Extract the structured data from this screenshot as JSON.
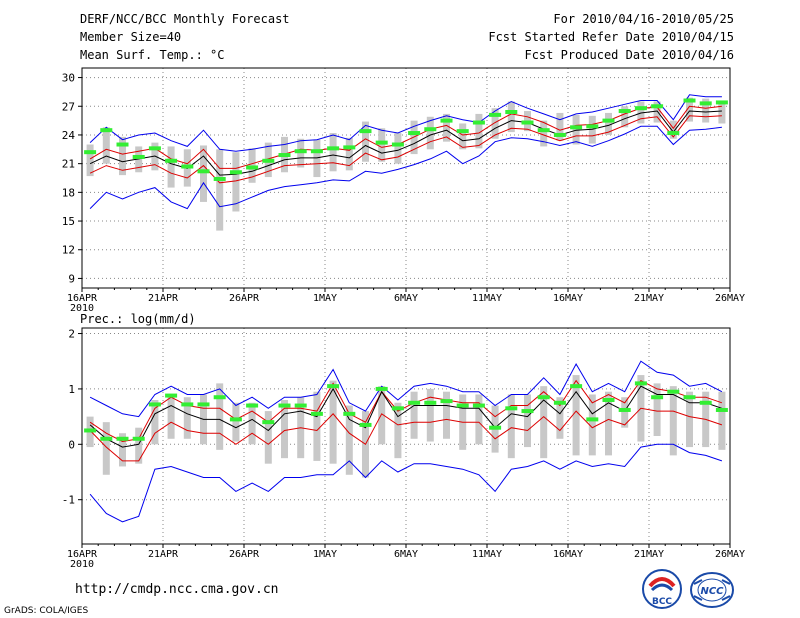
{
  "header": {
    "title": "DERF/NCC/BCC Monthly Forecast",
    "member_size": "Member Size=40",
    "variable": "Mean Surf. Temp.: °C",
    "forecast_period": "For 2010/04/16-2010/05/25",
    "start_refer_date": "Fcst Started Refer Date 2010/04/15",
    "produced_date": "Fcst Produced Date 2010/04/16"
  },
  "footer": {
    "url": "http://cmdp.ncc.cma.gov.cn",
    "credit": "GrADS: COLA/IGES",
    "logo_left_text": "BCC",
    "logo_right_text": "NCC"
  },
  "colors": {
    "envelope": "#0000ee",
    "spread": "#dd0000",
    "ensemble_mean": "#000000",
    "observed": "#33ee33",
    "box": "#c8c8c8",
    "grid": "#888888"
  },
  "chart_data": [
    {
      "type": "line",
      "title": "Mean Surf. Temp.: °C",
      "x_tick_labels": [
        "16APR",
        "21APR",
        "26APR",
        "1MAY",
        "6MAY",
        "11MAY",
        "16MAY",
        "21MAY",
        "26MAY"
      ],
      "x_year_label": "2010",
      "x_range": [
        0,
        40
      ],
      "x": [
        0,
        1,
        2,
        3,
        4,
        5,
        6,
        7,
        8,
        9,
        10,
        11,
        12,
        13,
        14,
        15,
        16,
        17,
        18,
        19,
        20,
        21,
        22,
        23,
        24,
        25,
        26,
        27,
        28,
        29,
        30,
        31,
        32,
        33,
        34,
        35,
        36,
        37,
        38,
        39
      ],
      "ylim": [
        8,
        31
      ],
      "y_ticks": [
        9,
        12,
        15,
        18,
        21,
        24,
        27,
        30
      ],
      "grid": true,
      "series": [
        {
          "name": "max",
          "values": [
            23.2,
            24.8,
            23.5,
            24.0,
            24.2,
            23.4,
            22.8,
            24.5,
            22.5,
            22.3,
            22.5,
            22.8,
            23.0,
            23.4,
            23.5,
            24.0,
            23.5,
            25.0,
            24.5,
            24.2,
            24.9,
            25.5,
            26.0,
            25.6,
            25.3,
            26.5,
            27.5,
            26.8,
            26.2,
            25.6,
            26.2,
            26.4,
            26.8,
            27.2,
            27.6,
            27.6,
            25.6,
            28.2,
            28.0,
            28.0
          ]
        },
        {
          "name": "upper",
          "values": [
            21.5,
            22.5,
            22.0,
            22.3,
            22.6,
            21.5,
            21.0,
            22.5,
            20.5,
            20.5,
            21.0,
            21.5,
            22.0,
            22.5,
            22.4,
            22.6,
            22.4,
            23.6,
            22.7,
            23.0,
            23.8,
            24.6,
            25.0,
            24.0,
            24.2,
            25.3,
            26.2,
            25.9,
            25.3,
            24.5,
            25.0,
            25.1,
            25.5,
            26.2,
            26.8,
            26.9,
            24.7,
            27.0,
            26.8,
            27.0
          ]
        },
        {
          "name": "mean",
          "values": [
            21.0,
            21.8,
            21.2,
            21.5,
            21.8,
            21.0,
            20.5,
            21.8,
            19.8,
            19.9,
            20.2,
            20.8,
            21.4,
            21.6,
            21.6,
            21.9,
            21.6,
            22.9,
            22.1,
            22.4,
            23.1,
            24.0,
            24.5,
            23.4,
            23.6,
            24.7,
            25.5,
            25.3,
            24.6,
            24.0,
            24.5,
            24.6,
            25.0,
            25.7,
            26.3,
            26.5,
            24.3,
            26.5,
            26.4,
            26.5
          ]
        },
        {
          "name": "lower",
          "values": [
            20.0,
            20.8,
            20.3,
            20.6,
            20.9,
            20.0,
            19.5,
            20.8,
            19.0,
            19.2,
            19.6,
            20.2,
            20.8,
            20.9,
            21.0,
            21.1,
            20.8,
            22.1,
            21.4,
            21.7,
            22.5,
            23.3,
            23.8,
            22.7,
            22.9,
            24.0,
            24.7,
            24.6,
            24.0,
            23.4,
            23.9,
            23.9,
            24.3,
            25.0,
            25.7,
            25.9,
            23.8,
            26.0,
            25.9,
            26.0
          ]
        },
        {
          "name": "min",
          "values": [
            16.3,
            18.0,
            17.3,
            18.0,
            18.5,
            17.0,
            16.3,
            19.0,
            16.5,
            16.8,
            17.5,
            18.2,
            18.6,
            18.8,
            19.0,
            19.3,
            19.2,
            20.2,
            20.0,
            20.4,
            20.9,
            21.5,
            22.3,
            21.0,
            21.8,
            23.3,
            23.7,
            23.6,
            23.3,
            22.9,
            23.3,
            22.8,
            23.4,
            24.1,
            24.9,
            24.9,
            23.0,
            24.5,
            24.6,
            24.8
          ]
        },
        {
          "name": "observed",
          "values": [
            22.2,
            24.5,
            23.0,
            21.7,
            22.6,
            21.3,
            20.7,
            20.2,
            19.4,
            20.1,
            20.6,
            21.3,
            21.9,
            22.3,
            22.3,
            22.6,
            22.7,
            24.4,
            23.2,
            23.0,
            24.2,
            24.6,
            25.5,
            24.4,
            25.3,
            26.1,
            26.4,
            25.3,
            24.5,
            24.0,
            24.8,
            24.9,
            25.5,
            26.5,
            26.8,
            27.0,
            24.2,
            27.6,
            27.3,
            27.4
          ]
        },
        {
          "name": "box_high",
          "values": [
            23.0,
            24.8,
            23.8,
            22.8,
            23.2,
            22.8,
            22.5,
            22.9,
            22.5,
            22.2,
            22.6,
            23.2,
            23.8,
            23.6,
            23.5,
            24.2,
            23.7,
            25.4,
            24.7,
            24.2,
            25.5,
            25.9,
            26.2,
            25.2,
            26.2,
            26.8,
            27.5,
            26.5,
            25.5,
            26.3,
            26.1,
            26.0,
            26.3,
            27.0,
            27.5,
            27.5,
            25.5,
            27.9,
            27.8,
            27.6
          ]
        },
        {
          "name": "box_low",
          "values": [
            19.7,
            21.0,
            19.8,
            20.1,
            20.3,
            18.5,
            18.6,
            17.0,
            14.0,
            16.0,
            19.0,
            19.6,
            20.1,
            20.6,
            19.6,
            20.2,
            20.3,
            21.2,
            21.2,
            21.0,
            22.0,
            22.5,
            23.3,
            22.5,
            22.6,
            23.6,
            24.3,
            24.4,
            22.8,
            23.4,
            23.0,
            23.1,
            24.0,
            24.8,
            25.2,
            25.3,
            23.6,
            25.4,
            25.3,
            25.2
          ]
        }
      ]
    },
    {
      "type": "line",
      "title": "Prec.: log(mm/d)",
      "x_tick_labels": [
        "16APR",
        "21APR",
        "26APR",
        "1MAY",
        "6MAY",
        "11MAY",
        "16MAY",
        "21MAY",
        "26MAY"
      ],
      "x_year_label": "2010",
      "x_range": [
        0,
        40
      ],
      "x": [
        0,
        1,
        2,
        3,
        4,
        5,
        6,
        7,
        8,
        9,
        10,
        11,
        12,
        13,
        14,
        15,
        16,
        17,
        18,
        19,
        20,
        21,
        22,
        23,
        24,
        25,
        26,
        27,
        28,
        29,
        30,
        31,
        32,
        33,
        34,
        35,
        36,
        37,
        38,
        39
      ],
      "ylim": [
        -1.8,
        2.1
      ],
      "y_ticks": [
        -1,
        0,
        1,
        2
      ],
      "grid": true,
      "series": [
        {
          "name": "max",
          "values": [
            0.85,
            0.7,
            0.55,
            0.5,
            0.9,
            1.05,
            0.9,
            0.9,
            1.0,
            0.7,
            0.85,
            0.65,
            0.85,
            0.85,
            0.9,
            1.35,
            0.75,
            0.6,
            1.05,
            0.8,
            1.05,
            1.1,
            1.05,
            0.95,
            0.95,
            0.7,
            0.9,
            0.9,
            1.2,
            0.9,
            1.45,
            0.95,
            1.1,
            0.95,
            1.5,
            1.3,
            1.25,
            1.05,
            1.1,
            0.95
          ]
        },
        {
          "name": "upper",
          "values": [
            0.4,
            0.2,
            0.05,
            0.1,
            0.65,
            0.85,
            0.7,
            0.65,
            0.65,
            0.45,
            0.6,
            0.4,
            0.65,
            0.65,
            0.6,
            1.1,
            0.55,
            0.4,
            0.95,
            0.6,
            0.75,
            0.85,
            0.8,
            0.75,
            0.75,
            0.5,
            0.7,
            0.7,
            0.95,
            0.7,
            1.15,
            0.75,
            0.9,
            0.75,
            1.15,
            1.0,
            0.95,
            0.85,
            0.85,
            0.75
          ]
        },
        {
          "name": "mean",
          "values": [
            0.35,
            0.1,
            -0.05,
            0.0,
            0.55,
            0.7,
            0.55,
            0.45,
            0.45,
            0.3,
            0.45,
            0.25,
            0.55,
            0.6,
            0.5,
            1.0,
            0.45,
            0.3,
            0.95,
            0.5,
            0.7,
            0.7,
            0.7,
            0.65,
            0.65,
            0.3,
            0.55,
            0.5,
            0.8,
            0.55,
            0.95,
            0.55,
            0.75,
            0.6,
            1.05,
            0.9,
            0.9,
            0.75,
            0.75,
            0.65
          ]
        },
        {
          "name": "lower",
          "values": [
            0.25,
            -0.05,
            -0.3,
            -0.3,
            0.2,
            0.4,
            0.25,
            0.2,
            0.2,
            0.0,
            0.2,
            0.0,
            0.25,
            0.3,
            0.25,
            0.55,
            0.2,
            0.0,
            0.55,
            0.35,
            0.4,
            0.4,
            0.45,
            0.4,
            0.4,
            0.1,
            0.3,
            0.25,
            0.5,
            0.25,
            0.6,
            0.3,
            0.45,
            0.35,
            0.65,
            0.6,
            0.6,
            0.5,
            0.45,
            0.35
          ]
        },
        {
          "name": "min",
          "values": [
            -0.9,
            -1.25,
            -1.4,
            -1.3,
            -0.45,
            -0.4,
            -0.5,
            -0.6,
            -0.6,
            -0.85,
            -0.7,
            -0.85,
            -0.6,
            -0.6,
            -0.55,
            -0.55,
            -0.3,
            -0.6,
            -0.3,
            -0.5,
            -0.35,
            -0.35,
            -0.4,
            -0.45,
            -0.55,
            -0.85,
            -0.45,
            -0.4,
            -0.3,
            -0.45,
            -0.3,
            -0.4,
            -0.35,
            -0.4,
            -0.05,
            0.0,
            0.0,
            -0.15,
            -0.2,
            -0.3
          ]
        },
        {
          "name": "observed",
          "values": [
            0.25,
            0.1,
            0.1,
            0.1,
            0.72,
            0.88,
            0.72,
            0.72,
            0.85,
            0.45,
            0.7,
            0.4,
            0.7,
            0.7,
            0.55,
            1.05,
            0.55,
            0.35,
            1.0,
            0.65,
            0.75,
            0.75,
            0.78,
            0.7,
            0.7,
            0.3,
            0.65,
            0.6,
            0.85,
            0.75,
            1.05,
            0.45,
            0.8,
            0.62,
            1.1,
            0.85,
            0.95,
            0.85,
            0.75,
            0.62
          ]
        },
        {
          "name": "box_high",
          "values": [
            0.5,
            0.4,
            0.2,
            0.3,
            0.8,
            0.9,
            0.85,
            0.9,
            1.1,
            0.75,
            0.75,
            0.6,
            0.8,
            0.85,
            0.95,
            1.15,
            0.7,
            0.6,
            1.05,
            0.75,
            0.95,
            1.0,
            0.95,
            0.9,
            0.9,
            0.7,
            0.9,
            0.9,
            1.05,
            0.85,
            1.25,
            0.9,
            0.95,
            0.85,
            1.25,
            1.1,
            1.05,
            0.95,
            0.95,
            0.95
          ]
        },
        {
          "name": "box_low",
          "values": [
            -0.05,
            -0.55,
            -0.4,
            -0.35,
            0.0,
            0.1,
            0.1,
            0.0,
            -0.1,
            0.05,
            0.0,
            -0.35,
            -0.25,
            -0.25,
            -0.3,
            -0.35,
            -0.55,
            -0.6,
            0.0,
            -0.25,
            0.1,
            0.05,
            0.1,
            -0.1,
            0.0,
            -0.15,
            -0.25,
            -0.05,
            -0.25,
            0.1,
            -0.2,
            -0.2,
            -0.2,
            0.3,
            0.05,
            0.15,
            -0.2,
            -0.05,
            -0.05,
            -0.1
          ]
        }
      ]
    }
  ]
}
